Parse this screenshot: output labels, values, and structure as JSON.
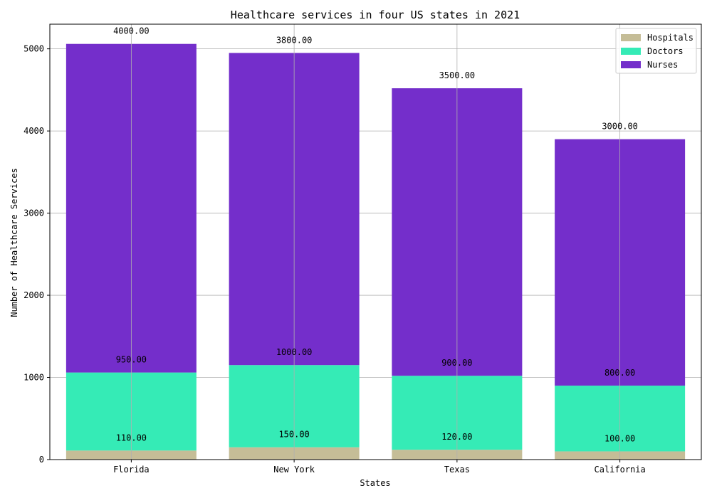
{
  "chart_data": {
    "type": "bar",
    "stacked": true,
    "title": "Healthcare services in four US states in 2021",
    "xlabel": "States",
    "ylabel": "Number of Healthcare Services",
    "categories": [
      "Florida",
      "New York",
      "Texas",
      "California"
    ],
    "series": [
      {
        "name": "Hospitals",
        "color": "#c5bd97",
        "values": [
          110,
          150,
          120,
          100
        ],
        "labels": [
          "110.00",
          "150.00",
          "120.00",
          "100.00"
        ]
      },
      {
        "name": "Doctors",
        "color": "#35ebb6",
        "values": [
          950,
          1000,
          900,
          800
        ],
        "labels": [
          "950.00",
          "1000.00",
          "900.00",
          "800.00"
        ]
      },
      {
        "name": "Nurses",
        "color": "#742ecb",
        "values": [
          4000,
          3800,
          3500,
          3000
        ],
        "labels": [
          "4000.00",
          "3800.00",
          "3500.00",
          "3000.00"
        ]
      }
    ],
    "ylim": [
      0,
      5300
    ],
    "yticks": [
      0,
      1000,
      2000,
      3000,
      4000,
      5000
    ],
    "grid": true,
    "legend": "top-right"
  }
}
